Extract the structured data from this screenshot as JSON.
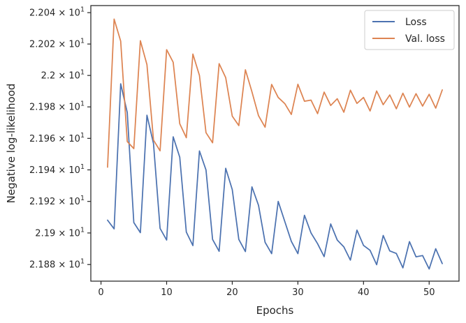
{
  "chart_data": {
    "type": "line",
    "title": "",
    "xlabel": "Epochs",
    "ylabel": "Negative log-likelihood",
    "xlim": [
      -1.55,
      54.55
    ],
    "ylim": [
      21.8695,
      22.0445
    ],
    "yscale": "log",
    "grid": false,
    "legend_position": "top-right",
    "x_ticks": [
      0,
      10,
      20,
      30,
      40,
      50
    ],
    "x_tick_labels": [
      "0",
      "10",
      "20",
      "30",
      "40",
      "50"
    ],
    "y_ticks": [
      {
        "value": 22.04,
        "mantissa": "2.204",
        "base": "10",
        "exp": "1"
      },
      {
        "value": 22.02,
        "mantissa": "2.202",
        "base": "10",
        "exp": "1"
      },
      {
        "value": 22.0,
        "mantissa": "2.2",
        "base": "10",
        "exp": "1"
      },
      {
        "value": 21.98,
        "mantissa": "2.198",
        "base": "10",
        "exp": "1"
      },
      {
        "value": 21.96,
        "mantissa": "2.196",
        "base": "10",
        "exp": "1"
      },
      {
        "value": 21.94,
        "mantissa": "2.194",
        "base": "10",
        "exp": "1"
      },
      {
        "value": 21.92,
        "mantissa": "2.192",
        "base": "10",
        "exp": "1"
      },
      {
        "value": 21.9,
        "mantissa": "2.19",
        "base": "10",
        "exp": "1"
      },
      {
        "value": 21.88,
        "mantissa": "2.188",
        "base": "10",
        "exp": "1"
      }
    ],
    "x": [
      1,
      2,
      3,
      4,
      5,
      6,
      7,
      8,
      9,
      10,
      11,
      12,
      13,
      14,
      15,
      16,
      17,
      18,
      19,
      20,
      21,
      22,
      23,
      24,
      25,
      26,
      27,
      28,
      29,
      30,
      31,
      32,
      33,
      34,
      35,
      36,
      37,
      38,
      39,
      40,
      41,
      42,
      43,
      44,
      45,
      46,
      47,
      48,
      49,
      50,
      51,
      52
    ],
    "series": [
      {
        "name": "Loss",
        "color": "#4c72b0",
        "values": [
          21.9081,
          21.9026,
          21.9947,
          21.9764,
          21.9066,
          21.9002,
          21.9747,
          21.9567,
          21.9029,
          21.8955,
          21.961,
          21.948,
          21.9006,
          21.892,
          21.952,
          21.9399,
          21.8959,
          21.8884,
          21.941,
          21.9275,
          21.8959,
          21.8882,
          21.9292,
          21.9175,
          21.8941,
          21.8869,
          21.92,
          21.9073,
          21.8947,
          21.8869,
          21.9112,
          21.9,
          21.8932,
          21.885,
          21.9057,
          21.8955,
          21.8912,
          21.8828,
          21.9018,
          21.8921,
          21.889,
          21.8799,
          21.8984,
          21.8886,
          21.887,
          21.8779,
          21.8945,
          21.8849,
          21.8857,
          21.8772,
          21.89,
          21.8806
        ]
      },
      {
        "name": "Val. loss",
        "color": "#dd8452",
        "values": [
          21.9417,
          22.0359,
          22.0218,
          21.958,
          21.9535,
          22.0221,
          22.0069,
          21.9589,
          21.9521,
          22.0164,
          22.0084,
          21.9693,
          21.9604,
          22.0136,
          22.0,
          21.9636,
          21.9572,
          22.0075,
          21.9986,
          21.9741,
          21.9681,
          22.0036,
          21.9896,
          21.9744,
          21.9671,
          21.9943,
          21.986,
          21.9821,
          21.9752,
          21.9944,
          21.9836,
          21.9843,
          21.9757,
          21.9894,
          21.9809,
          21.9852,
          21.9766,
          21.9906,
          21.9822,
          21.986,
          21.9774,
          21.9901,
          21.9814,
          21.9876,
          21.9788,
          21.9887,
          21.9799,
          21.9884,
          21.9805,
          21.988,
          21.9792,
          21.9908
        ]
      }
    ]
  }
}
